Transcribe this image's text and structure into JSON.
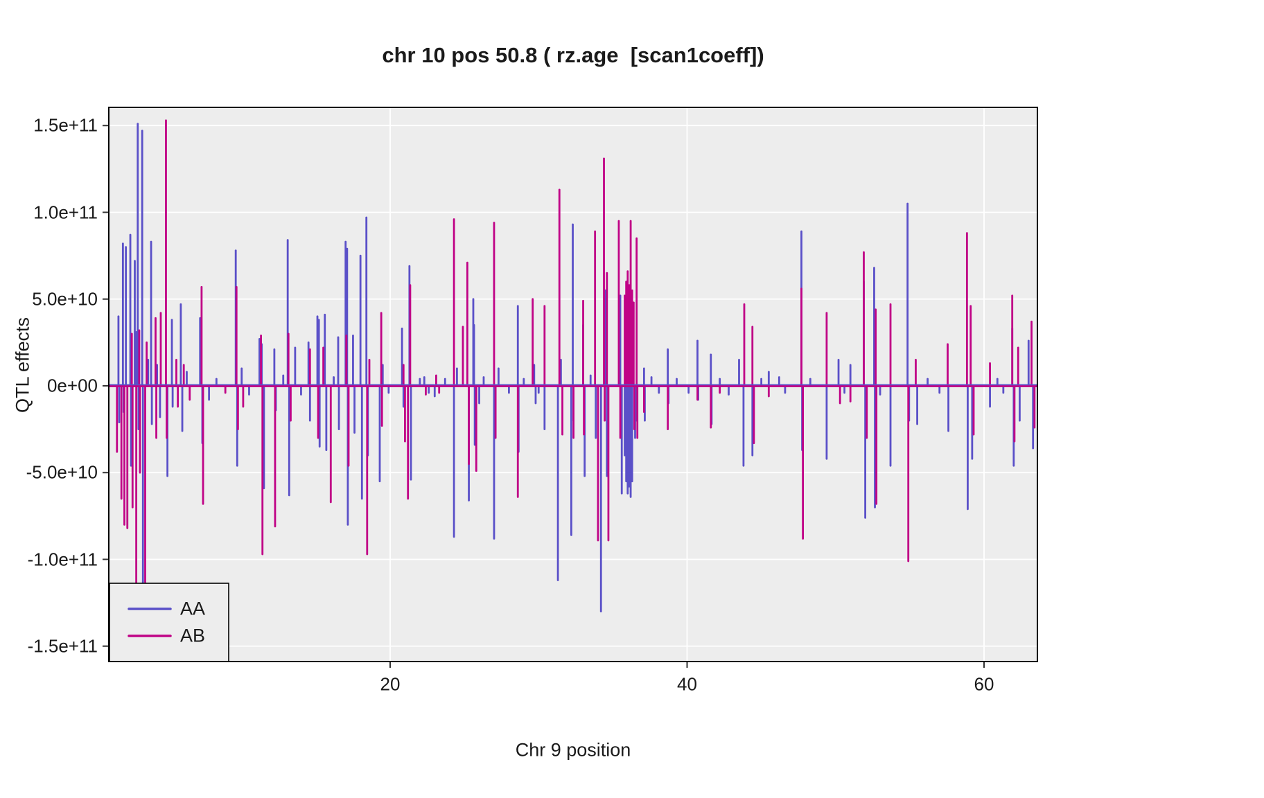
{
  "title": "chr 10 pos 50.8 ( rz.age  [scan1coeff])",
  "axes": {
    "x": {
      "title": "Chr 9 position",
      "ticks": [
        {
          "label": "20",
          "value": 20
        },
        {
          "label": "40",
          "value": 40
        },
        {
          "label": "60",
          "value": 60
        }
      ],
      "range": [
        1.05,
        63.6
      ]
    },
    "y": {
      "title": "QTL effects",
      "ticks": [
        {
          "label": "1.5e+11",
          "value_e9": 150
        },
        {
          "label": "1.0e+11",
          "value_e9": 100
        },
        {
          "label": "5.0e+10",
          "value_e9": 50
        },
        {
          "label": "0e+00",
          "value_e9": 0
        },
        {
          "label": "-5.0e+10",
          "value_e9": -50
        },
        {
          "label": "-1.0e+11",
          "value_e9": -100
        },
        {
          "label": "-1.5e+11",
          "value_e9": -150
        }
      ],
      "range_e9": [
        -160,
        160
      ]
    }
  },
  "legend": [
    {
      "label": "AA",
      "color": "#5a50c8"
    },
    {
      "label": "AB",
      "color": "#c00386"
    }
  ],
  "colors": {
    "panel_background": "#ededed",
    "gridline": "#ffffff",
    "panel_border": "#000000",
    "aa": "#5a50c8",
    "ab": "#c00386",
    "text": "#1a1a1a"
  },
  "chart_data": {
    "type": "line",
    "style": "impulse-spikes-with-zero-baseline",
    "x_label": "Chr 9 position",
    "y_label": "QTL effects",
    "x_major": [
      20,
      40,
      60
    ],
    "y_major_e9": [
      -150,
      -100,
      -50,
      0,
      50,
      100,
      150
    ],
    "value_unit": "QTL effect coefficient, values stored as multiples of 1e9",
    "series": [
      {
        "name": "AA",
        "color": "#5a50c8",
        "points": [
          [
            1.7,
            40
          ],
          [
            1.75,
            -21
          ],
          [
            2.0,
            82
          ],
          [
            2.05,
            -15
          ],
          [
            2.2,
            80
          ],
          [
            2.5,
            87
          ],
          [
            2.55,
            -46
          ],
          [
            2.8,
            72
          ],
          [
            2.9,
            31
          ],
          [
            3.0,
            151
          ],
          [
            3.05,
            -25
          ],
          [
            3.3,
            147
          ],
          [
            3.35,
            -114
          ],
          [
            3.7,
            15
          ],
          [
            3.9,
            83
          ],
          [
            3.95,
            -22
          ],
          [
            4.3,
            12
          ],
          [
            4.5,
            -18
          ],
          [
            5.0,
            -52
          ],
          [
            5.3,
            38
          ],
          [
            5.35,
            -12
          ],
          [
            5.9,
            47
          ],
          [
            6.0,
            -26
          ],
          [
            6.3,
            8
          ],
          [
            7.2,
            39
          ],
          [
            7.35,
            -33
          ],
          [
            7.8,
            -8
          ],
          [
            8.3,
            4
          ],
          [
            9.6,
            78
          ],
          [
            9.7,
            -46
          ],
          [
            10.0,
            10
          ],
          [
            10.5,
            -5
          ],
          [
            11.2,
            27
          ],
          [
            11.35,
            24
          ],
          [
            11.5,
            -59
          ],
          [
            12.2,
            21
          ],
          [
            12.3,
            -14
          ],
          [
            12.8,
            6
          ],
          [
            13.1,
            84
          ],
          [
            13.2,
            -63
          ],
          [
            13.6,
            22
          ],
          [
            14.0,
            -5
          ],
          [
            14.5,
            25
          ],
          [
            14.6,
            -20
          ],
          [
            15.1,
            40
          ],
          [
            15.2,
            38
          ],
          [
            15.25,
            -35
          ],
          [
            15.6,
            41
          ],
          [
            15.7,
            -37
          ],
          [
            16.2,
            5
          ],
          [
            16.5,
            28
          ],
          [
            16.55,
            -25
          ],
          [
            17.0,
            83
          ],
          [
            17.1,
            79
          ],
          [
            17.15,
            -80
          ],
          [
            17.5,
            29
          ],
          [
            17.6,
            -27
          ],
          [
            18.0,
            75
          ],
          [
            18.1,
            -65
          ],
          [
            18.4,
            97
          ],
          [
            18.5,
            -40
          ],
          [
            19.3,
            -55
          ],
          [
            19.5,
            12
          ],
          [
            19.9,
            -4
          ],
          [
            20.8,
            33
          ],
          [
            20.9,
            -12
          ],
          [
            21.3,
            69
          ],
          [
            21.4,
            -54
          ],
          [
            22.0,
            4
          ],
          [
            22.3,
            5
          ],
          [
            22.6,
            -4
          ],
          [
            23.0,
            -6
          ],
          [
            23.7,
            4
          ],
          [
            24.3,
            -87
          ],
          [
            24.5,
            10
          ],
          [
            25.3,
            -66
          ],
          [
            25.6,
            50
          ],
          [
            25.65,
            35
          ],
          [
            25.7,
            -34
          ],
          [
            26.0,
            -10
          ],
          [
            26.3,
            5
          ],
          [
            27.0,
            -88
          ],
          [
            27.3,
            10
          ],
          [
            28.0,
            -4
          ],
          [
            28.6,
            46
          ],
          [
            28.65,
            -38
          ],
          [
            29.0,
            4
          ],
          [
            29.7,
            12
          ],
          [
            29.8,
            -10
          ],
          [
            30.0,
            -4
          ],
          [
            30.4,
            -25
          ],
          [
            31.3,
            -112
          ],
          [
            31.5,
            15
          ],
          [
            32.2,
            -86
          ],
          [
            32.3,
            93
          ],
          [
            32.35,
            -20
          ],
          [
            33.0,
            35
          ],
          [
            33.1,
            -52
          ],
          [
            33.5,
            6
          ],
          [
            33.85,
            -30
          ],
          [
            34.2,
            -130
          ],
          [
            34.5,
            55
          ],
          [
            34.6,
            -52
          ],
          [
            35.5,
            52
          ],
          [
            35.6,
            -62
          ],
          [
            35.8,
            -40
          ],
          [
            35.9,
            -55
          ],
          [
            36.0,
            -62
          ],
          [
            36.1,
            -58
          ],
          [
            36.2,
            -64
          ],
          [
            36.3,
            -55
          ],
          [
            36.35,
            20
          ],
          [
            36.5,
            -30
          ],
          [
            36.6,
            -20
          ],
          [
            37.1,
            10
          ],
          [
            37.15,
            -20
          ],
          [
            37.6,
            5
          ],
          [
            38.1,
            -4
          ],
          [
            38.7,
            21
          ],
          [
            38.75,
            -10
          ],
          [
            39.3,
            4
          ],
          [
            40.1,
            -4
          ],
          [
            40.7,
            26
          ],
          [
            40.75,
            -8
          ],
          [
            41.6,
            18
          ],
          [
            41.65,
            -22
          ],
          [
            42.2,
            4
          ],
          [
            42.8,
            -5
          ],
          [
            43.5,
            15
          ],
          [
            43.8,
            -46
          ],
          [
            44.4,
            -40
          ],
          [
            45.0,
            4
          ],
          [
            45.5,
            8
          ],
          [
            46.2,
            5
          ],
          [
            46.6,
            -4
          ],
          [
            47.7,
            89
          ],
          [
            47.75,
            -37
          ],
          [
            48.3,
            4
          ],
          [
            49.4,
            -42
          ],
          [
            50.2,
            15
          ],
          [
            50.6,
            -4
          ],
          [
            51.0,
            12
          ],
          [
            51.9,
            60
          ],
          [
            52.0,
            -76
          ],
          [
            52.6,
            68
          ],
          [
            52.65,
            -70
          ],
          [
            53.0,
            -5
          ],
          [
            53.7,
            -46
          ],
          [
            54.85,
            105
          ],
          [
            54.95,
            -20
          ],
          [
            55.5,
            -22
          ],
          [
            56.2,
            4
          ],
          [
            57.0,
            -4
          ],
          [
            57.6,
            -26
          ],
          [
            58.9,
            -71
          ],
          [
            59.2,
            -42
          ],
          [
            60.4,
            -12
          ],
          [
            60.9,
            4
          ],
          [
            61.3,
            -4
          ],
          [
            61.9,
            33
          ],
          [
            62.0,
            -46
          ],
          [
            62.4,
            -20
          ],
          [
            63.0,
            26
          ],
          [
            63.3,
            -36
          ]
        ]
      },
      {
        "name": "AB",
        "color": "#c00386",
        "points": [
          [
            1.6,
            -38
          ],
          [
            1.9,
            -65
          ],
          [
            2.1,
            -80
          ],
          [
            2.3,
            -82
          ],
          [
            2.6,
            30
          ],
          [
            2.65,
            -70
          ],
          [
            2.9,
            -115
          ],
          [
            3.1,
            32
          ],
          [
            3.15,
            -50
          ],
          [
            3.5,
            -113
          ],
          [
            3.6,
            25
          ],
          [
            4.2,
            39
          ],
          [
            4.25,
            -30
          ],
          [
            4.55,
            42
          ],
          [
            4.9,
            153
          ],
          [
            4.95,
            -30
          ],
          [
            5.6,
            15
          ],
          [
            5.7,
            -12
          ],
          [
            6.1,
            12
          ],
          [
            6.5,
            -8
          ],
          [
            7.3,
            57
          ],
          [
            7.4,
            -68
          ],
          [
            8.9,
            -4
          ],
          [
            9.65,
            57
          ],
          [
            9.75,
            -25
          ],
          [
            10.1,
            -12
          ],
          [
            11.3,
            29
          ],
          [
            11.4,
            -97
          ],
          [
            12.25,
            -81
          ],
          [
            13.15,
            30
          ],
          [
            13.3,
            -20
          ],
          [
            14.6,
            21
          ],
          [
            15.15,
            -30
          ],
          [
            15.5,
            22
          ],
          [
            16.0,
            -67
          ],
          [
            17.05,
            29
          ],
          [
            17.2,
            -46
          ],
          [
            18.45,
            -97
          ],
          [
            18.6,
            15
          ],
          [
            19.4,
            42
          ],
          [
            19.45,
            -23
          ],
          [
            20.9,
            12
          ],
          [
            21.0,
            -32
          ],
          [
            21.2,
            -65
          ],
          [
            21.35,
            58
          ],
          [
            22.4,
            -5
          ],
          [
            23.1,
            6
          ],
          [
            23.3,
            -4
          ],
          [
            24.3,
            96
          ],
          [
            24.9,
            34
          ],
          [
            25.2,
            71
          ],
          [
            25.3,
            -45
          ],
          [
            25.8,
            -49
          ],
          [
            27.0,
            94
          ],
          [
            27.1,
            -30
          ],
          [
            28.6,
            -64
          ],
          [
            29.6,
            50
          ],
          [
            30.4,
            46
          ],
          [
            31.4,
            113
          ],
          [
            31.6,
            -28
          ],
          [
            32.35,
            -30
          ],
          [
            33.0,
            49
          ],
          [
            33.05,
            -28
          ],
          [
            33.8,
            89
          ],
          [
            34.0,
            -89
          ],
          [
            34.4,
            131
          ],
          [
            34.45,
            -20
          ],
          [
            34.6,
            65
          ],
          [
            34.7,
            -89
          ],
          [
            35.4,
            95
          ],
          [
            35.5,
            -30
          ],
          [
            35.8,
            52
          ],
          [
            35.9,
            60
          ],
          [
            36.0,
            66
          ],
          [
            36.1,
            58
          ],
          [
            36.2,
            95
          ],
          [
            36.3,
            55
          ],
          [
            36.4,
            48
          ],
          [
            36.45,
            -25
          ],
          [
            36.6,
            85
          ],
          [
            36.65,
            -30
          ],
          [
            37.1,
            -15
          ],
          [
            38.7,
            -25
          ],
          [
            40.7,
            -8
          ],
          [
            41.6,
            -24
          ],
          [
            42.2,
            -4
          ],
          [
            43.85,
            47
          ],
          [
            44.4,
            34
          ],
          [
            44.5,
            -33
          ],
          [
            45.5,
            -6
          ],
          [
            47.7,
            56
          ],
          [
            47.8,
            -88
          ],
          [
            49.4,
            42
          ],
          [
            50.3,
            -10
          ],
          [
            51.0,
            -9
          ],
          [
            51.9,
            77
          ],
          [
            52.1,
            -30
          ],
          [
            52.7,
            44
          ],
          [
            52.75,
            -68
          ],
          [
            53.7,
            47
          ],
          [
            54.9,
            -101
          ],
          [
            55.4,
            15
          ],
          [
            57.55,
            24
          ],
          [
            58.85,
            88
          ],
          [
            59.1,
            46
          ],
          [
            59.3,
            -28
          ],
          [
            60.4,
            13
          ],
          [
            61.9,
            52
          ],
          [
            62.05,
            -32
          ],
          [
            62.3,
            22
          ],
          [
            63.2,
            37
          ],
          [
            63.4,
            -24
          ]
        ]
      }
    ],
    "baseline_e9": 0,
    "x_range": [
      1.05,
      63.6
    ],
    "y_range_e9": [
      -160,
      160
    ],
    "grid": "major-only, white on gray panel",
    "legend_position": "bottom-left inside panel, boxed"
  }
}
